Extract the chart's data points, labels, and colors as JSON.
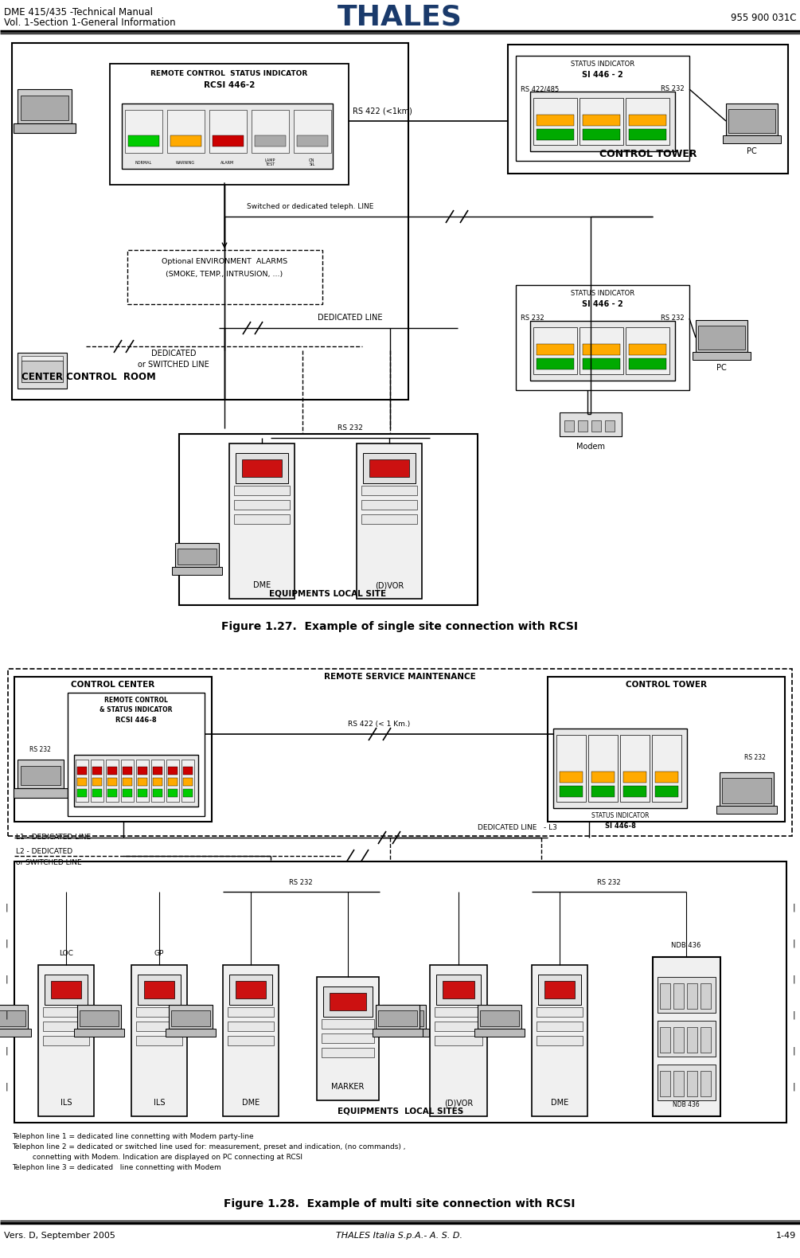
{
  "page_width": 10.05,
  "page_height": 15.8,
  "dpi": 100,
  "bg_color": "#ffffff",
  "header_left1": "DME 415/435 -Technical Manual",
  "header_left2": "Vol. 1-Section 1-General Information",
  "header_center": "THALES",
  "header_right": "955 900 031C",
  "footer_left": "Vers. D, September 2005",
  "footer_center": "THALES Italia S.p.A.- A. S. D.",
  "footer_right": "1-49",
  "fig1_title": "Figure 1.27.  Example of single site connection with RCSI",
  "fig2_title": "Figure 1.28.  Example of multi site connection with RCSI",
  "fig2_note1": "Telephon line 1 = dedicated line connetting with Modem party-line",
  "fig2_note2": "Telephon line 2 = dedicated or switched line used for: measurement, preset and indication, (no commands) ,",
  "fig2_note3": "         connetting with Modem. Indication are displayed on PC connecting at RCSI",
  "fig2_note4": "Telephon line 3 = dedicated   line connetting with Modem"
}
